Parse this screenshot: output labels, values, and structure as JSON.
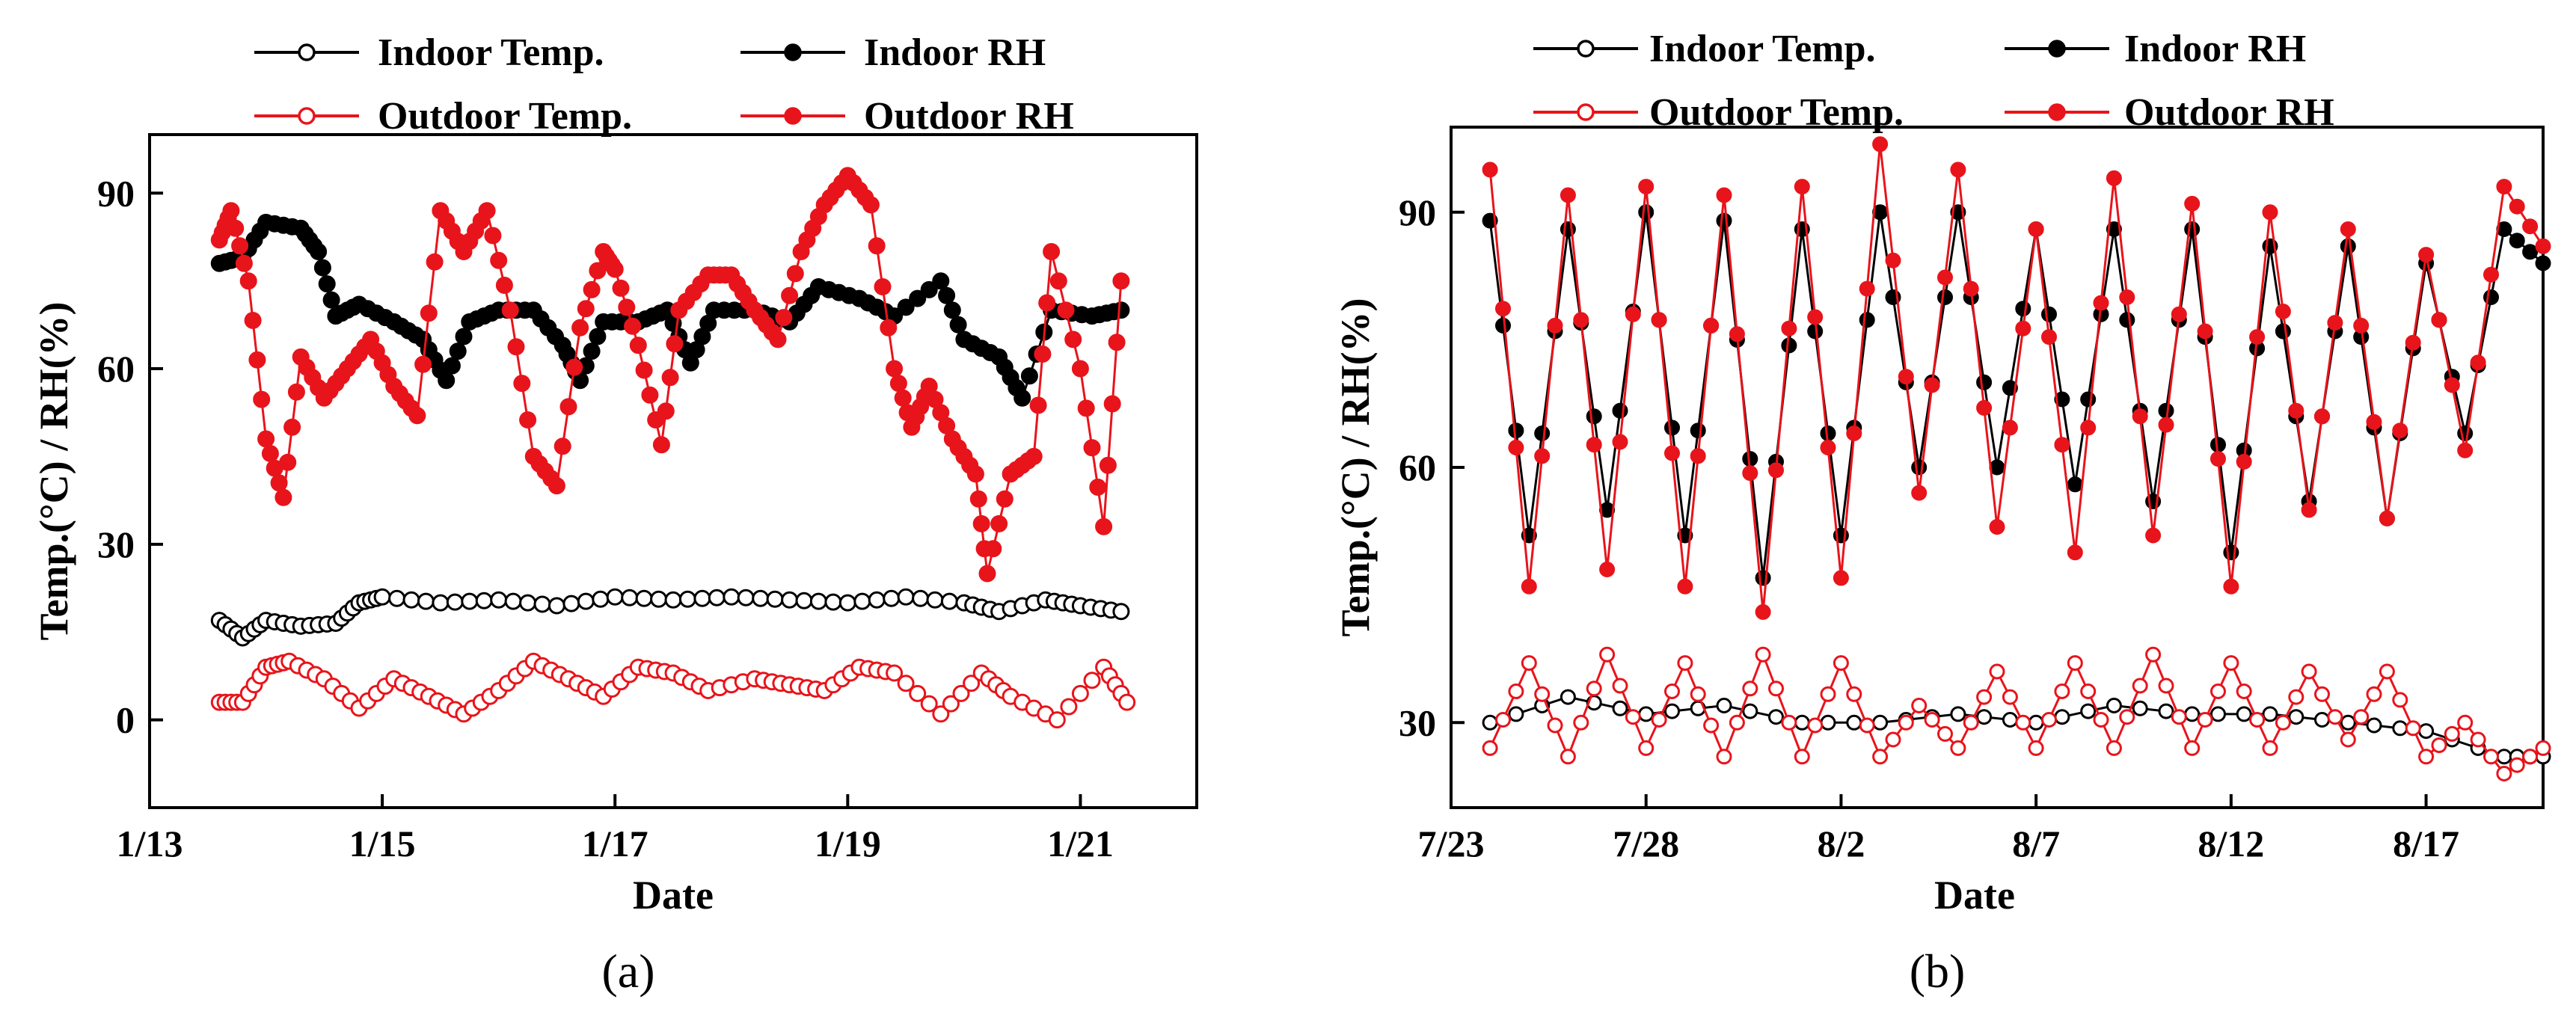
{
  "chart_data": [
    {
      "type": "line",
      "panel_label": "(a)",
      "xlabel": "Date",
      "ylabel": "Temp.(°C) / RH(%)",
      "x_unit": "day of January",
      "xlim": [
        13.0,
        22.0
      ],
      "ylim": [
        -15,
        100
      ],
      "x_ticks": [
        13,
        15,
        17,
        19,
        21
      ],
      "x_tick_labels": [
        "1/13",
        "1/15",
        "1/17",
        "1/19",
        "1/21"
      ],
      "y_ticks": [
        0,
        30,
        60,
        90
      ],
      "y_tick_labels": [
        "0",
        "30",
        "60",
        "90"
      ],
      "legend_position": "top",
      "series": [
        {
          "name": "Indoor Temp.",
          "color": "#000000",
          "marker": "open-circle",
          "points": [
            [
              13.6,
              17
            ],
            [
              13.8,
              14
            ],
            [
              14.0,
              17
            ],
            [
              14.3,
              16
            ],
            [
              14.6,
              16.5
            ],
            [
              14.8,
              20
            ],
            [
              15.0,
              21
            ],
            [
              15.5,
              20
            ],
            [
              16.0,
              20.5
            ],
            [
              16.5,
              19.5
            ],
            [
              17.0,
              21
            ],
            [
              17.5,
              20.5
            ],
            [
              18.0,
              21
            ],
            [
              18.5,
              20.5
            ],
            [
              19.0,
              20
            ],
            [
              19.5,
              21
            ],
            [
              20.0,
              20
            ],
            [
              20.3,
              18.5
            ],
            [
              20.7,
              20.5
            ],
            [
              21.0,
              19.5
            ],
            [
              21.35,
              18.5
            ]
          ]
        },
        {
          "name": "Indoor RH",
          "color": "#000000",
          "marker": "filled-circle",
          "points": [
            [
              13.6,
              78
            ],
            [
              13.8,
              79
            ],
            [
              14.0,
              85
            ],
            [
              14.3,
              84
            ],
            [
              14.45,
              80
            ],
            [
              14.6,
              69
            ],
            [
              14.8,
              71
            ],
            [
              15.1,
              68
            ],
            [
              15.35,
              65
            ],
            [
              15.55,
              58
            ],
            [
              15.75,
              68
            ],
            [
              16.0,
              70
            ],
            [
              16.3,
              70
            ],
            [
              16.55,
              64
            ],
            [
              16.7,
              58
            ],
            [
              16.9,
              68
            ],
            [
              17.2,
              68
            ],
            [
              17.45,
              70
            ],
            [
              17.65,
              61
            ],
            [
              17.85,
              70
            ],
            [
              18.2,
              70
            ],
            [
              18.5,
              68
            ],
            [
              18.75,
              74
            ],
            [
              19.1,
              72
            ],
            [
              19.4,
              69
            ],
            [
              19.8,
              75
            ],
            [
              20.0,
              65
            ],
            [
              20.3,
              62
            ],
            [
              20.5,
              55
            ],
            [
              20.75,
              70
            ],
            [
              21.1,
              69
            ],
            [
              21.35,
              70
            ]
          ]
        },
        {
          "name": "Outdoor Temp.",
          "color": "#e8141b",
          "marker": "open-circle",
          "points": [
            [
              13.6,
              3
            ],
            [
              13.8,
              3
            ],
            [
              14.0,
              9
            ],
            [
              14.2,
              10
            ],
            [
              14.5,
              7
            ],
            [
              14.8,
              2
            ],
            [
              15.1,
              7
            ],
            [
              15.4,
              4
            ],
            [
              15.7,
              1
            ],
            [
              16.0,
              5
            ],
            [
              16.3,
              10
            ],
            [
              16.6,
              7
            ],
            [
              16.9,
              4
            ],
            [
              17.2,
              9
            ],
            [
              17.5,
              8
            ],
            [
              17.8,
              5
            ],
            [
              18.2,
              7
            ],
            [
              18.5,
              6
            ],
            [
              18.8,
              5
            ],
            [
              19.1,
              9
            ],
            [
              19.4,
              8
            ],
            [
              19.8,
              1
            ],
            [
              20.15,
              8
            ],
            [
              20.4,
              4
            ],
            [
              20.8,
              0
            ],
            [
              21.2,
              9
            ],
            [
              21.4,
              3
            ]
          ]
        },
        {
          "name": "Outdoor RH",
          "color": "#e8141b",
          "marker": "filled-circle",
          "points": [
            [
              13.6,
              82
            ],
            [
              13.7,
              87
            ],
            [
              13.85,
              75
            ],
            [
              14.0,
              48
            ],
            [
              14.15,
              38
            ],
            [
              14.3,
              62
            ],
            [
              14.5,
              55
            ],
            [
              14.7,
              60
            ],
            [
              14.9,
              65
            ],
            [
              15.1,
              57
            ],
            [
              15.3,
              52
            ],
            [
              15.5,
              87
            ],
            [
              15.7,
              80
            ],
            [
              15.9,
              87
            ],
            [
              16.1,
              70
            ],
            [
              16.3,
              45
            ],
            [
              16.5,
              40
            ],
            [
              16.7,
              67
            ],
            [
              16.9,
              80
            ],
            [
              17.0,
              77
            ],
            [
              17.2,
              64
            ],
            [
              17.4,
              47
            ],
            [
              17.55,
              70
            ],
            [
              17.8,
              76
            ],
            [
              18.0,
              76
            ],
            [
              18.2,
              70
            ],
            [
              18.4,
              65
            ],
            [
              18.6,
              80
            ],
            [
              18.8,
              88
            ],
            [
              19.0,
              93
            ],
            [
              19.2,
              88
            ],
            [
              19.4,
              60
            ],
            [
              19.55,
              50
            ],
            [
              19.7,
              57
            ],
            [
              19.9,
              48
            ],
            [
              20.1,
              42
            ],
            [
              20.2,
              25
            ],
            [
              20.4,
              42
            ],
            [
              20.6,
              45
            ],
            [
              20.75,
              80
            ],
            [
              21.0,
              60
            ],
            [
              21.2,
              33
            ],
            [
              21.35,
              75
            ]
          ]
        }
      ]
    },
    {
      "type": "line",
      "panel_label": "(b)",
      "xlabel": "Date",
      "ylabel": "Temp.(°C) / RH(%)",
      "x_unit": "date",
      "xlim": [
        "7/23",
        "8/20"
      ],
      "ylim": [
        20,
        100
      ],
      "x_ticks": [
        "7/23",
        "7/28",
        "8/2",
        "8/7",
        "8/12",
        "8/17"
      ],
      "y_ticks": [
        30,
        60,
        90
      ],
      "y_tick_labels": [
        "30",
        "60",
        "90"
      ],
      "legend_position": "top",
      "series": [
        {
          "name": "Indoor Temp.",
          "color": "#000000",
          "marker": "open-circle",
          "points": [
            [
              "7/24",
              30
            ],
            [
              "7/26",
              33
            ],
            [
              "7/28",
              31
            ],
            [
              "7/30",
              32
            ],
            [
              "8/1",
              30
            ],
            [
              "8/3",
              30
            ],
            [
              "8/5",
              31
            ],
            [
              "8/7",
              30
            ],
            [
              "8/9",
              32
            ],
            [
              "8/11",
              31
            ],
            [
              "8/13",
              31
            ],
            [
              "8/15",
              30
            ],
            [
              "8/17",
              29
            ],
            [
              "8/19",
              26
            ],
            [
              "8/20",
              26
            ]
          ]
        },
        {
          "name": "Indoor RH",
          "color": "#000000",
          "marker": "filled-circle",
          "points": [
            [
              "7/24",
              89
            ],
            [
              "7/25",
              52
            ],
            [
              "7/26",
              88
            ],
            [
              "7/27",
              55
            ],
            [
              "7/28",
              90
            ],
            [
              "7/29",
              52
            ],
            [
              "7/30",
              89
            ],
            [
              "7/31",
              47
            ],
            [
              "8/1",
              88
            ],
            [
              "8/2",
              52
            ],
            [
              "8/3",
              90
            ],
            [
              "8/4",
              60
            ],
            [
              "8/5",
              90
            ],
            [
              "8/6",
              60
            ],
            [
              "8/7",
              88
            ],
            [
              "8/8",
              58
            ],
            [
              "8/9",
              88
            ],
            [
              "8/10",
              56
            ],
            [
              "8/11",
              88
            ],
            [
              "8/12",
              50
            ],
            [
              "8/13",
              86
            ],
            [
              "8/14",
              56
            ],
            [
              "8/15",
              86
            ],
            [
              "8/16",
              54
            ],
            [
              "8/17",
              84
            ],
            [
              "8/18",
              64
            ],
            [
              "8/19",
              88
            ],
            [
              "8/20",
              84
            ]
          ]
        },
        {
          "name": "Outdoor Temp.",
          "color": "#e8141b",
          "marker": "open-circle",
          "points": [
            [
              "7/24",
              27
            ],
            [
              "7/25",
              37
            ],
            [
              "7/26",
              26
            ],
            [
              "7/27",
              38
            ],
            [
              "7/28",
              27
            ],
            [
              "7/29",
              37
            ],
            [
              "7/30",
              26
            ],
            [
              "7/31",
              38
            ],
            [
              "8/1",
              26
            ],
            [
              "8/2",
              37
            ],
            [
              "8/3",
              26
            ],
            [
              "8/4",
              32
            ],
            [
              "8/5",
              27
            ],
            [
              "8/6",
              36
            ],
            [
              "8/7",
              27
            ],
            [
              "8/8",
              37
            ],
            [
              "8/9",
              27
            ],
            [
              "8/10",
              38
            ],
            [
              "8/11",
              27
            ],
            [
              "8/12",
              37
            ],
            [
              "8/13",
              27
            ],
            [
              "8/14",
              36
            ],
            [
              "8/15",
              28
            ],
            [
              "8/16",
              36
            ],
            [
              "8/17",
              26
            ],
            [
              "8/18",
              30
            ],
            [
              "8/19",
              24
            ],
            [
              "8/20",
              27
            ]
          ]
        },
        {
          "name": "Outdoor RH",
          "color": "#e8141b",
          "marker": "filled-circle",
          "points": [
            [
              "7/24",
              95
            ],
            [
              "7/25",
              46
            ],
            [
              "7/26",
              92
            ],
            [
              "7/27",
              48
            ],
            [
              "7/28",
              93
            ],
            [
              "7/29",
              46
            ],
            [
              "7/30",
              92
            ],
            [
              "7/31",
              43
            ],
            [
              "8/1",
              93
            ],
            [
              "8/2",
              47
            ],
            [
              "8/3",
              98
            ],
            [
              "8/4",
              57
            ],
            [
              "8/5",
              95
            ],
            [
              "8/6",
              53
            ],
            [
              "8/7",
              88
            ],
            [
              "8/8",
              50
            ],
            [
              "8/9",
              94
            ],
            [
              "8/10",
              52
            ],
            [
              "8/11",
              91
            ],
            [
              "8/12",
              46
            ],
            [
              "8/13",
              90
            ],
            [
              "8/14",
              55
            ],
            [
              "8/15",
              88
            ],
            [
              "8/16",
              54
            ],
            [
              "8/17",
              85
            ],
            [
              "8/18",
              62
            ],
            [
              "8/19",
              93
            ],
            [
              "8/20",
              86
            ]
          ]
        }
      ]
    }
  ]
}
